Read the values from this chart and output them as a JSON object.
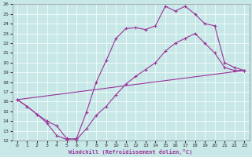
{
  "xlabel": "Windchill (Refroidissement éolien,°C)",
  "bg_color": "#c8e8e8",
  "line_color": "#993399",
  "xlim": [
    -0.5,
    23.5
  ],
  "ylim": [
    12,
    26
  ],
  "xticks": [
    0,
    1,
    2,
    3,
    4,
    5,
    6,
    7,
    8,
    9,
    10,
    11,
    12,
    13,
    14,
    15,
    16,
    17,
    18,
    19,
    20,
    21,
    22,
    23
  ],
  "yticks": [
    12,
    13,
    14,
    15,
    16,
    17,
    18,
    19,
    20,
    21,
    22,
    23,
    24,
    25,
    26
  ],
  "line1_x": [
    0,
    1,
    2,
    3,
    4,
    5,
    6,
    7,
    8,
    9,
    10,
    11,
    12,
    13,
    14,
    15,
    16,
    17,
    18,
    19,
    20,
    21,
    22,
    23
  ],
  "line1_y": [
    16.2,
    15.5,
    14.7,
    14.0,
    13.5,
    12.2,
    12.1,
    13.2,
    14.6,
    15.5,
    16.7,
    17.8,
    18.6,
    19.3,
    20.0,
    21.2,
    22.0,
    22.5,
    23.0,
    22.0,
    21.0,
    19.5,
    19.2,
    19.2
  ],
  "line2_x": [
    0,
    1,
    2,
    3,
    4,
    5,
    6,
    7,
    8,
    9,
    10,
    11,
    12,
    13,
    14,
    15,
    16,
    17,
    18,
    19,
    20,
    21,
    22,
    23
  ],
  "line2_y": [
    16.2,
    15.5,
    14.7,
    13.8,
    12.5,
    12.1,
    12.2,
    14.9,
    18.0,
    20.2,
    22.5,
    23.5,
    23.6,
    23.4,
    23.8,
    25.8,
    25.3,
    25.8,
    25.0,
    24.0,
    23.8,
    20.0,
    19.5,
    19.2
  ],
  "line3_x": [
    0,
    23
  ],
  "line3_y": [
    16.2,
    19.2
  ]
}
